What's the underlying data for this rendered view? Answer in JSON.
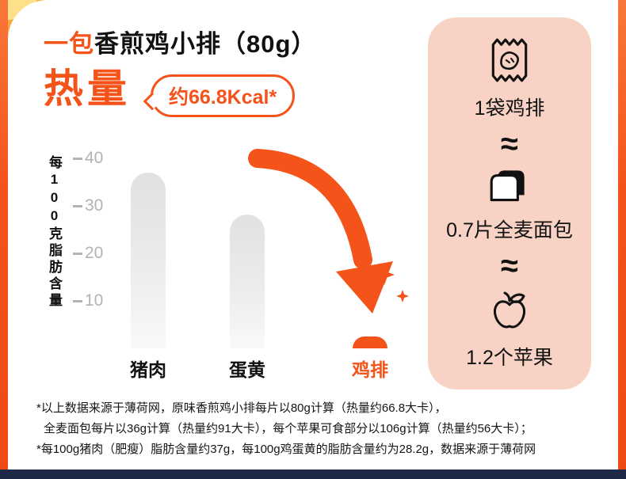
{
  "colors": {
    "accent": "#f4531a",
    "panel_bg": "#f8d3c5",
    "bottom_bar": "#1d2947",
    "bar_gray": "#e9e9e9",
    "tick_color": "#b3b3b3"
  },
  "header": {
    "title_highlight": "一包",
    "title_rest": "香煎鸡小排（80g）",
    "calorie_label": "热量",
    "calorie_badge": "约66.8Kcal*"
  },
  "chart_data": {
    "type": "bar",
    "title": "",
    "ylabel": "每100克脂肪含量",
    "categories": [
      "猪肉",
      "蛋黄",
      "鸡排"
    ],
    "values": [
      37,
      28.2,
      2.5
    ],
    "yticks": [
      40,
      30,
      20,
      10
    ],
    "ylim": [
      0,
      42
    ],
    "highlight_index": 2,
    "legend": "none",
    "grid": "off"
  },
  "equivalents": {
    "approx_symbol": "≈",
    "items": [
      {
        "icon": "snack-bag-icon",
        "label": "1袋鸡排"
      },
      {
        "icon": "bread-icon",
        "label": "0.7片全麦面包"
      },
      {
        "icon": "apple-icon",
        "label": "1.2个苹果"
      }
    ]
  },
  "footnotes": {
    "lines": [
      "*以上数据来源于薄荷网，原味香煎鸡小排每片以80g计算（热量约66.8大卡），",
      "全麦面包每片以36g计算（热量约91大卡），每个苹果可食部分以106g计算（热量约56大卡）；",
      "*每100g猪肉（肥瘦）脂肪含量约37g，每100g鸡蛋黄的脂肪含量约为28.2g，数据来源于薄荷网"
    ]
  }
}
